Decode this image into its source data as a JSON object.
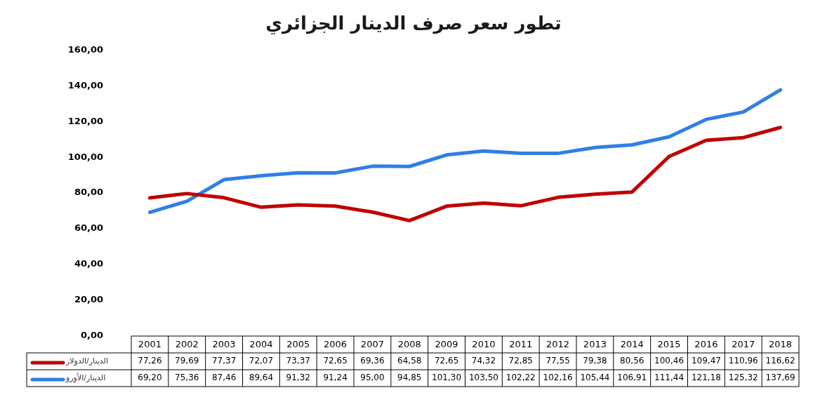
{
  "chart_data": {
    "type": "line",
    "title": "تطور سعر صرف الدينار الجزائري",
    "categories": [
      "2001",
      "2002",
      "2003",
      "2004",
      "2005",
      "2006",
      "2007",
      "2008",
      "2009",
      "2010",
      "2011",
      "2012",
      "2013",
      "2014",
      "2015",
      "2016",
      "2017",
      "2018"
    ],
    "series": [
      {
        "name": "الدينار/الدولار",
        "color": "#c00000",
        "values": [
          77.26,
          79.69,
          77.37,
          72.07,
          73.37,
          72.65,
          69.36,
          64.58,
          72.65,
          74.32,
          72.85,
          77.55,
          79.38,
          80.56,
          100.46,
          109.47,
          110.96,
          116.62
        ],
        "value_labels": [
          "77,26",
          "79,69",
          "77,37",
          "72,07",
          "73,37",
          "72,65",
          "69,36",
          "64,58",
          "72,65",
          "74,32",
          "72,85",
          "77,55",
          "79,38",
          "80,56",
          "100,46",
          "109,47",
          "110,96",
          "116,62"
        ]
      },
      {
        "name": "الدينار/الأورو",
        "color": "#2f7fe6",
        "values": [
          69.2,
          75.36,
          87.46,
          89.64,
          91.32,
          91.24,
          95.0,
          94.85,
          101.3,
          103.5,
          102.22,
          102.16,
          105.44,
          106.91,
          111.44,
          121.18,
          125.32,
          137.69
        ],
        "value_labels": [
          "69,20",
          "75,36",
          "87,46",
          "89,64",
          "91,32",
          "91,24",
          "95,00",
          "94,85",
          "101,30",
          "103,50",
          "102,22",
          "102,16",
          "105,44",
          "106,91",
          "111,44",
          "121,18",
          "125,32",
          "137,69"
        ]
      }
    ],
    "ylim": [
      0,
      160
    ],
    "yticks": [
      {
        "value": 0,
        "label": "0,00"
      },
      {
        "value": 20,
        "label": "20,00"
      },
      {
        "value": 40,
        "label": "40,00"
      },
      {
        "value": 60,
        "label": "60,00"
      },
      {
        "value": 80,
        "label": "80,00"
      },
      {
        "value": 100,
        "label": "100,00"
      },
      {
        "value": 120,
        "label": "120,00"
      },
      {
        "value": 140,
        "label": "140,00"
      },
      {
        "value": 160,
        "label": "160,00"
      }
    ],
    "grid": false,
    "legend": "bottom left",
    "marker": "none",
    "line_style": "solid"
  }
}
